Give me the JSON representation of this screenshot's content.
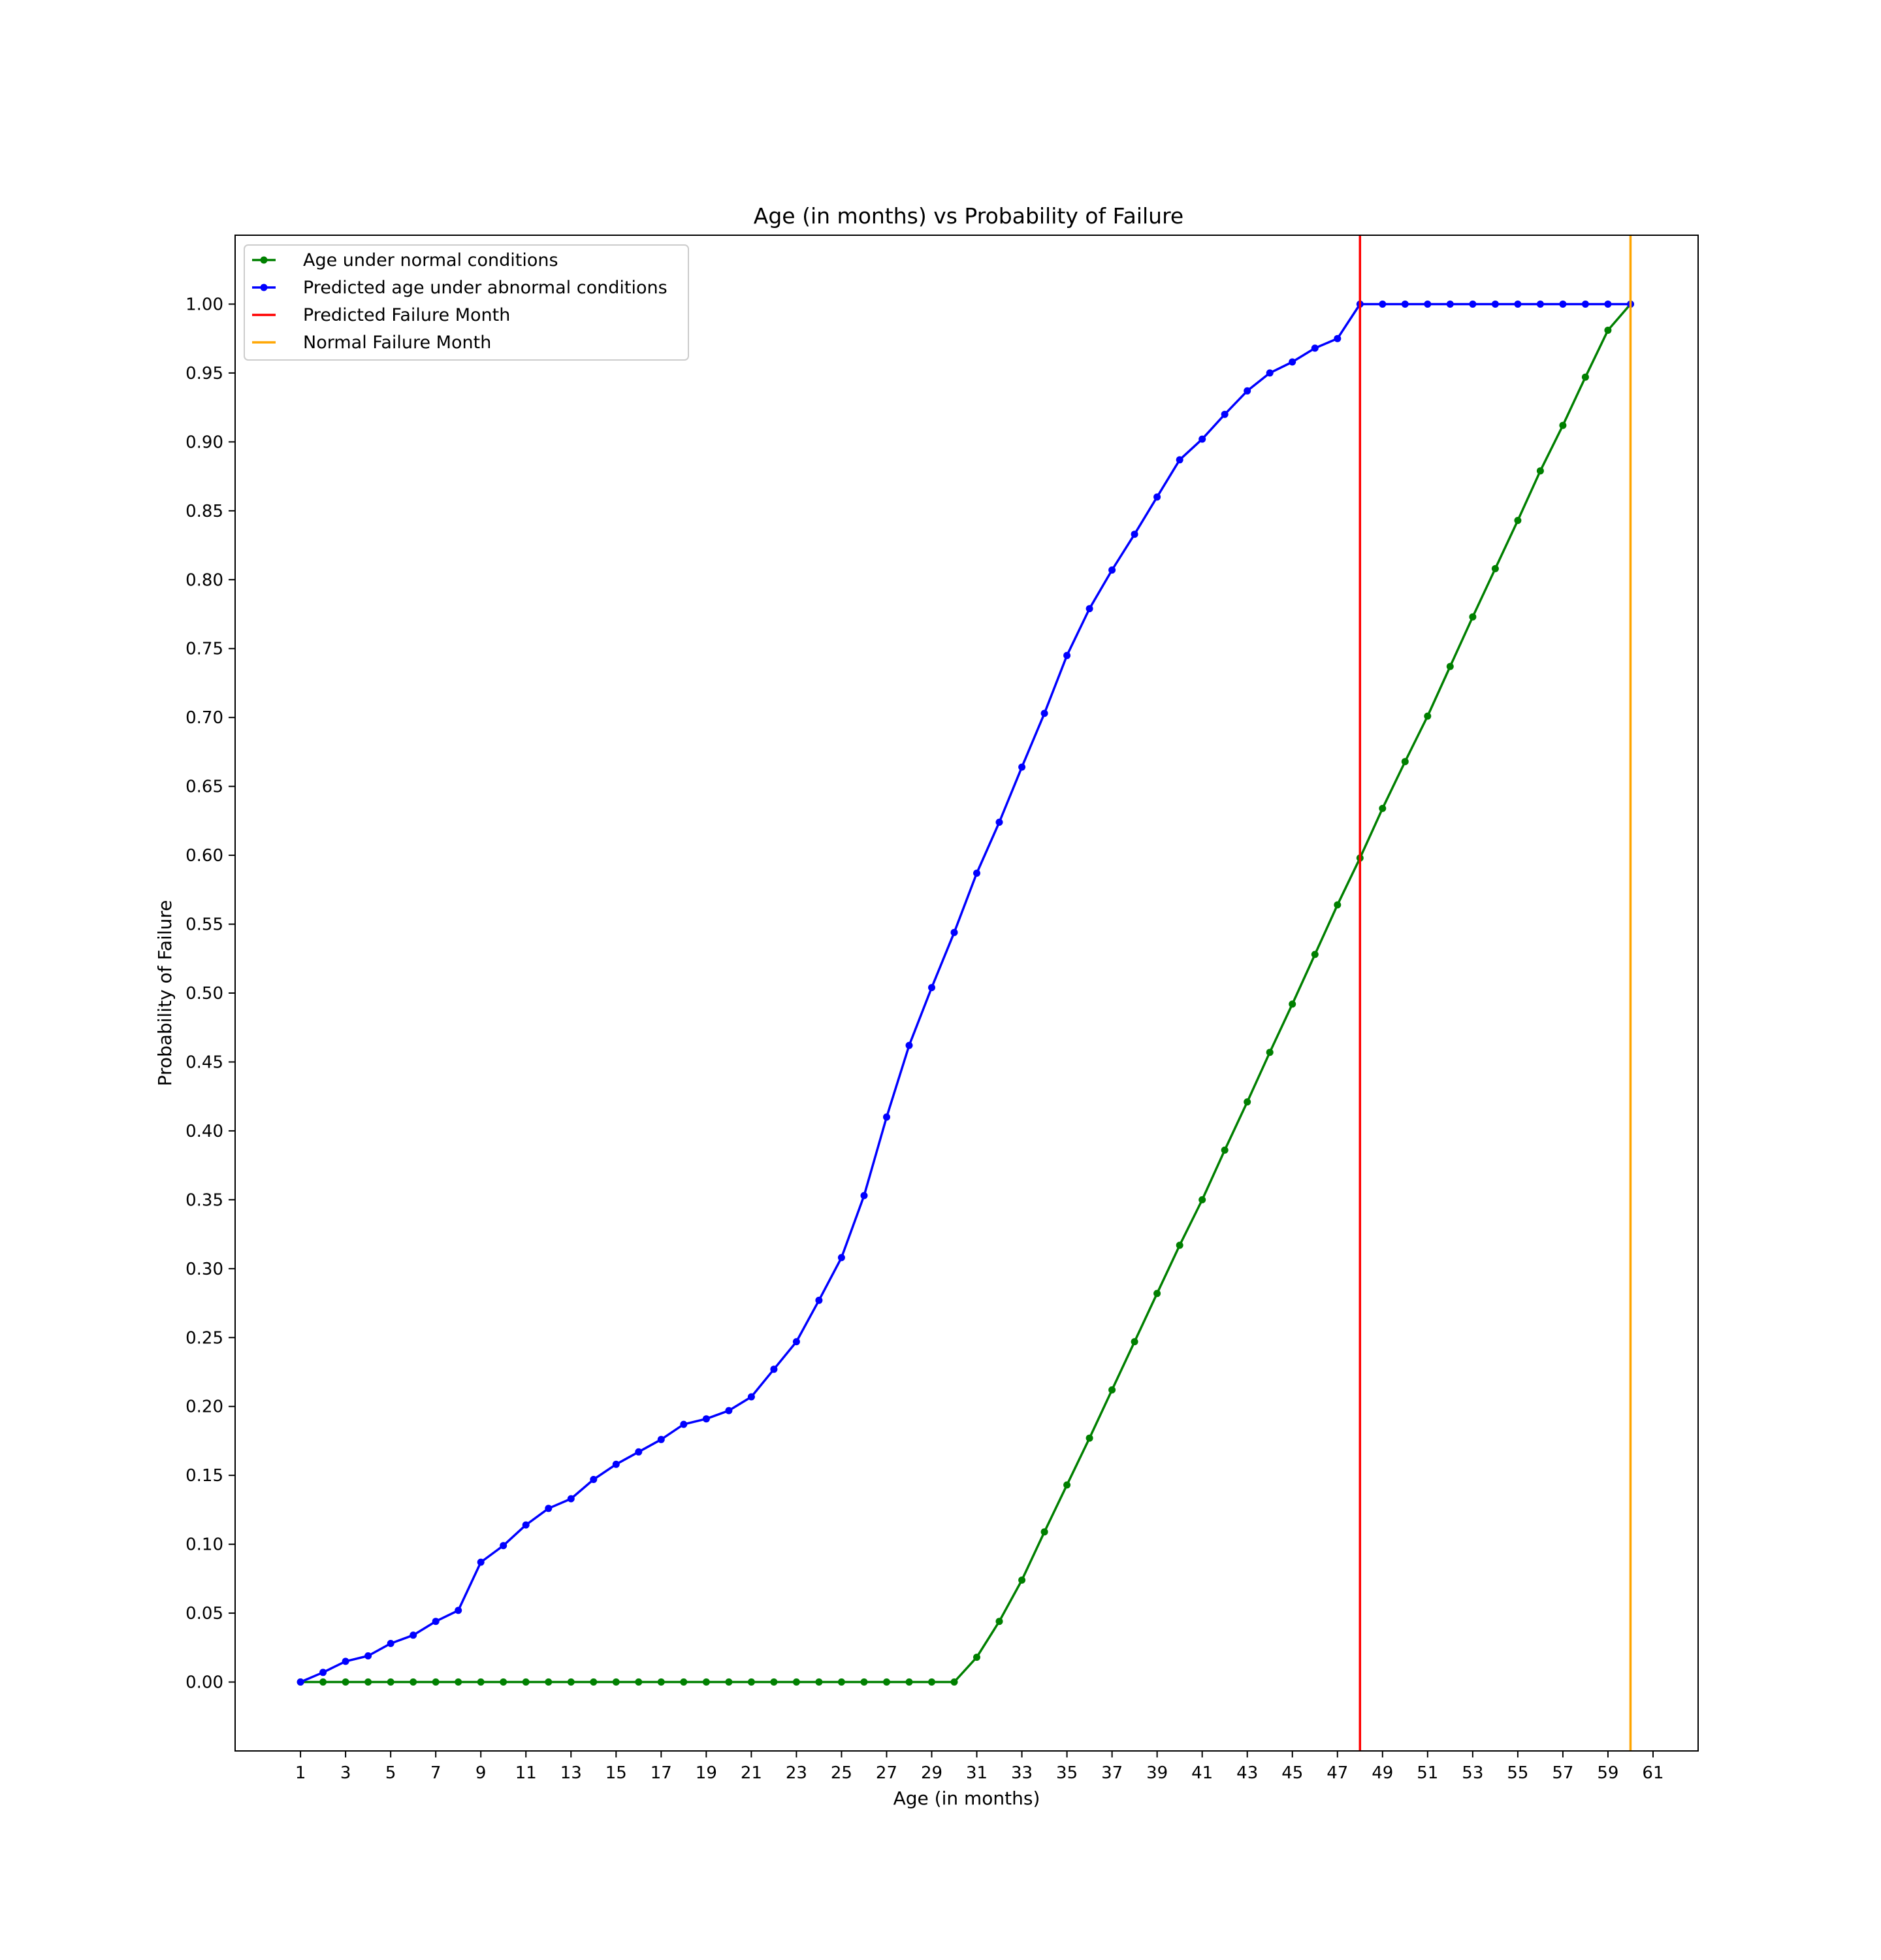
{
  "chart_data": {
    "type": "line",
    "title": "Age (in months) vs Probability of Failure",
    "xlabel": "Age (in months)",
    "ylabel": "Probability of Failure",
    "xlim": [
      -1.9,
      63
    ],
    "ylim": [
      -0.05,
      1.05
    ],
    "xticks": [
      1,
      3,
      5,
      7,
      9,
      11,
      13,
      15,
      17,
      19,
      21,
      23,
      25,
      27,
      29,
      31,
      33,
      35,
      37,
      39,
      41,
      43,
      45,
      47,
      49,
      51,
      53,
      55,
      57,
      59,
      61
    ],
    "yticks": [
      0.0,
      0.05,
      0.1,
      0.15,
      0.2,
      0.25,
      0.3,
      0.35,
      0.4,
      0.45,
      0.5,
      0.55,
      0.6,
      0.65,
      0.7,
      0.75,
      0.8,
      0.85,
      0.9,
      0.95,
      1.0
    ],
    "xtick_labels": [
      "1",
      "3",
      "5",
      "7",
      "9",
      "11",
      "13",
      "15",
      "17",
      "19",
      "21",
      "23",
      "25",
      "27",
      "29",
      "31",
      "33",
      "35",
      "37",
      "39",
      "41",
      "43",
      "45",
      "47",
      "49",
      "51",
      "53",
      "55",
      "57",
      "59",
      "61"
    ],
    "ytick_labels": [
      "0.00",
      "0.05",
      "0.10",
      "0.15",
      "0.20",
      "0.25",
      "0.30",
      "0.35",
      "0.40",
      "0.45",
      "0.50",
      "0.55",
      "0.60",
      "0.65",
      "0.70",
      "0.75",
      "0.80",
      "0.85",
      "0.90",
      "0.95",
      "1.00"
    ],
    "grid": false,
    "legend_position": "upper-left",
    "x": [
      1,
      2,
      3,
      4,
      5,
      6,
      7,
      8,
      9,
      10,
      11,
      12,
      13,
      14,
      15,
      16,
      17,
      18,
      19,
      20,
      21,
      22,
      23,
      24,
      25,
      26,
      27,
      28,
      29,
      30,
      31,
      32,
      33,
      34,
      35,
      36,
      37,
      38,
      39,
      40,
      41,
      42,
      43,
      44,
      45,
      46,
      47,
      48,
      49,
      50,
      51,
      52,
      53,
      54,
      55,
      56,
      57,
      58,
      59,
      60
    ],
    "series": [
      {
        "name": "Age under normal conditions",
        "color": "#008000",
        "marker": "dot",
        "values": [
          0,
          0,
          0,
          0,
          0,
          0,
          0,
          0,
          0,
          0,
          0,
          0,
          0,
          0,
          0,
          0,
          0,
          0,
          0,
          0,
          0,
          0,
          0,
          0,
          0,
          0,
          0,
          0,
          0,
          0,
          0.018,
          0.044,
          0.074,
          0.109,
          0.143,
          0.177,
          0.212,
          0.247,
          0.282,
          0.317,
          0.35,
          0.386,
          0.421,
          0.457,
          0.492,
          0.528,
          0.564,
          0.598,
          0.634,
          0.668,
          0.701,
          0.737,
          0.773,
          0.808,
          0.843,
          0.879,
          0.912,
          0.947,
          0.981,
          1.0
        ]
      },
      {
        "name": "Predicted age under abnormal conditions",
        "color": "#0000ff",
        "marker": "dot",
        "values": [
          0,
          0.007,
          0.015,
          0.019,
          0.028,
          0.034,
          0.044,
          0.052,
          0.087,
          0.099,
          0.114,
          0.126,
          0.133,
          0.147,
          0.158,
          0.167,
          0.176,
          0.187,
          0.191,
          0.197,
          0.207,
          0.227,
          0.247,
          0.277,
          0.308,
          0.353,
          0.41,
          0.462,
          0.504,
          0.544,
          0.587,
          0.624,
          0.664,
          0.703,
          0.745,
          0.779,
          0.807,
          0.833,
          0.86,
          0.887,
          0.902,
          0.92,
          0.937,
          0.95,
          0.958,
          0.968,
          0.975,
          1.0,
          1.0,
          1.0,
          1.0,
          1.0,
          1.0,
          1.0,
          1.0,
          1.0,
          1.0,
          1.0,
          1.0,
          1.0
        ]
      }
    ],
    "vlines": [
      {
        "name": "Predicted Failure Month",
        "x": 48,
        "color": "#ff0000"
      },
      {
        "name": "Normal Failure Month",
        "x": 60,
        "color": "#ffa500"
      }
    ]
  }
}
